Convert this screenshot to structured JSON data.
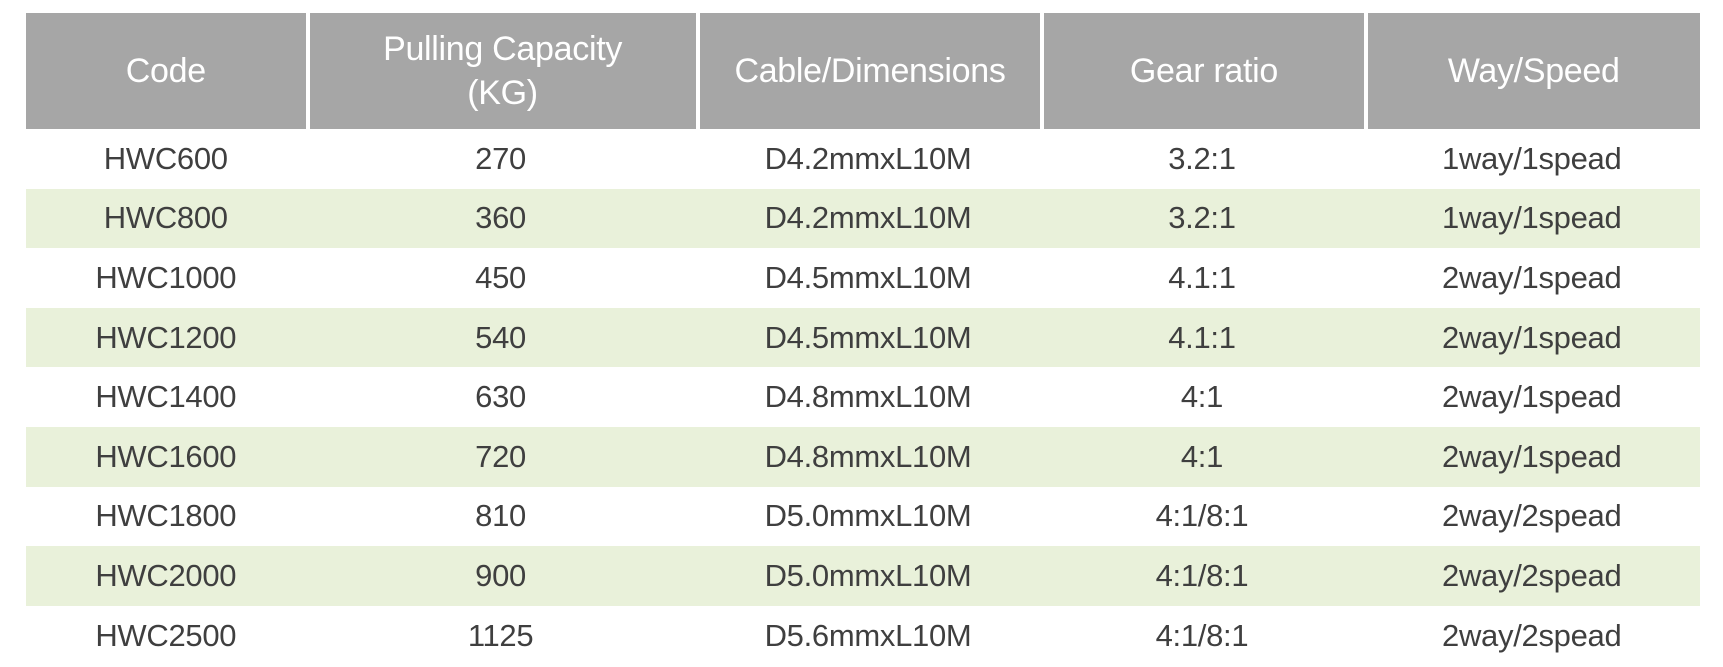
{
  "table": {
    "columns": [
      {
        "label": "Code"
      },
      {
        "label": "Pulling Capacity\n(KG)"
      },
      {
        "label": "Cable/Dimensions"
      },
      {
        "label": "Gear ratio"
      },
      {
        "label": "Way/Speed"
      }
    ],
    "rows": [
      [
        "HWC600",
        "270",
        "D4.2mmxL10M",
        "3.2:1",
        "1way/1spead"
      ],
      [
        "HWC800",
        "360",
        "D4.2mmxL10M",
        "3.2:1",
        "1way/1spead"
      ],
      [
        "HWC1000",
        "450",
        "D4.5mmxL10M",
        "4.1:1",
        "2way/1spead"
      ],
      [
        "HWC1200",
        "540",
        "D4.5mmxL10M",
        "4.1:1",
        "2way/1spead"
      ],
      [
        "HWC1400",
        "630",
        "D4.8mmxL10M",
        "4:1",
        "2way/1spead"
      ],
      [
        "HWC1600",
        "720",
        "D4.8mmxL10M",
        "4:1",
        "2way/1spead"
      ],
      [
        "HWC1800",
        "810",
        "D5.0mmxL10M",
        "4:1/8:1",
        "2way/2spead"
      ],
      [
        "HWC2000",
        "900",
        "D5.0mmxL10M",
        "4:1/8:1",
        "2way/2spead"
      ],
      [
        "HWC2500",
        "1125",
        "D5.6mmxL10M",
        "4:1/8:1",
        "2way/2spead"
      ]
    ],
    "colors": {
      "header_bg": "#a6a6a6",
      "header_text": "#ffffff",
      "row_bg": "#ffffff",
      "row_alt_bg": "#e9f1da",
      "body_text": "#3f3f3f"
    }
  }
}
